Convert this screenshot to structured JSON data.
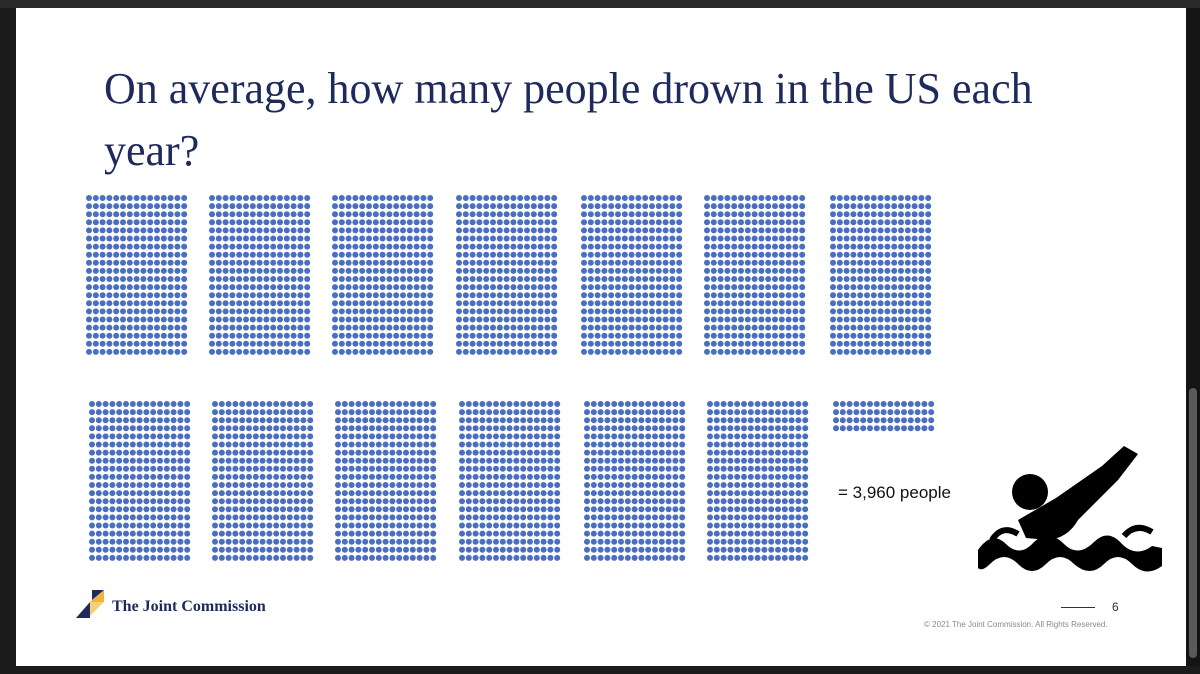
{
  "slide": {
    "title": "On average, how many people drown in the US each year?",
    "equals_label": "= 3,960 people",
    "page_number": "6",
    "copyright": "© 2021 The Joint Commission. All Rights Reserved."
  },
  "logo": {
    "text": "The Joint Commission"
  },
  "icons": {
    "swimmer": "drowning-swimmer-icon",
    "logo_mark": "joint-commission-logo-mark"
  },
  "colors": {
    "dot": "#4a6fbf",
    "title": "#1f2a5c",
    "logo_navy": "#1f2a5c",
    "logo_gold": "#f2b33d"
  },
  "chart_data": {
    "type": "pictogram",
    "total": 3960,
    "full_block_count": 13,
    "people_per_full_block": 300,
    "partial_block_people": 60
  }
}
